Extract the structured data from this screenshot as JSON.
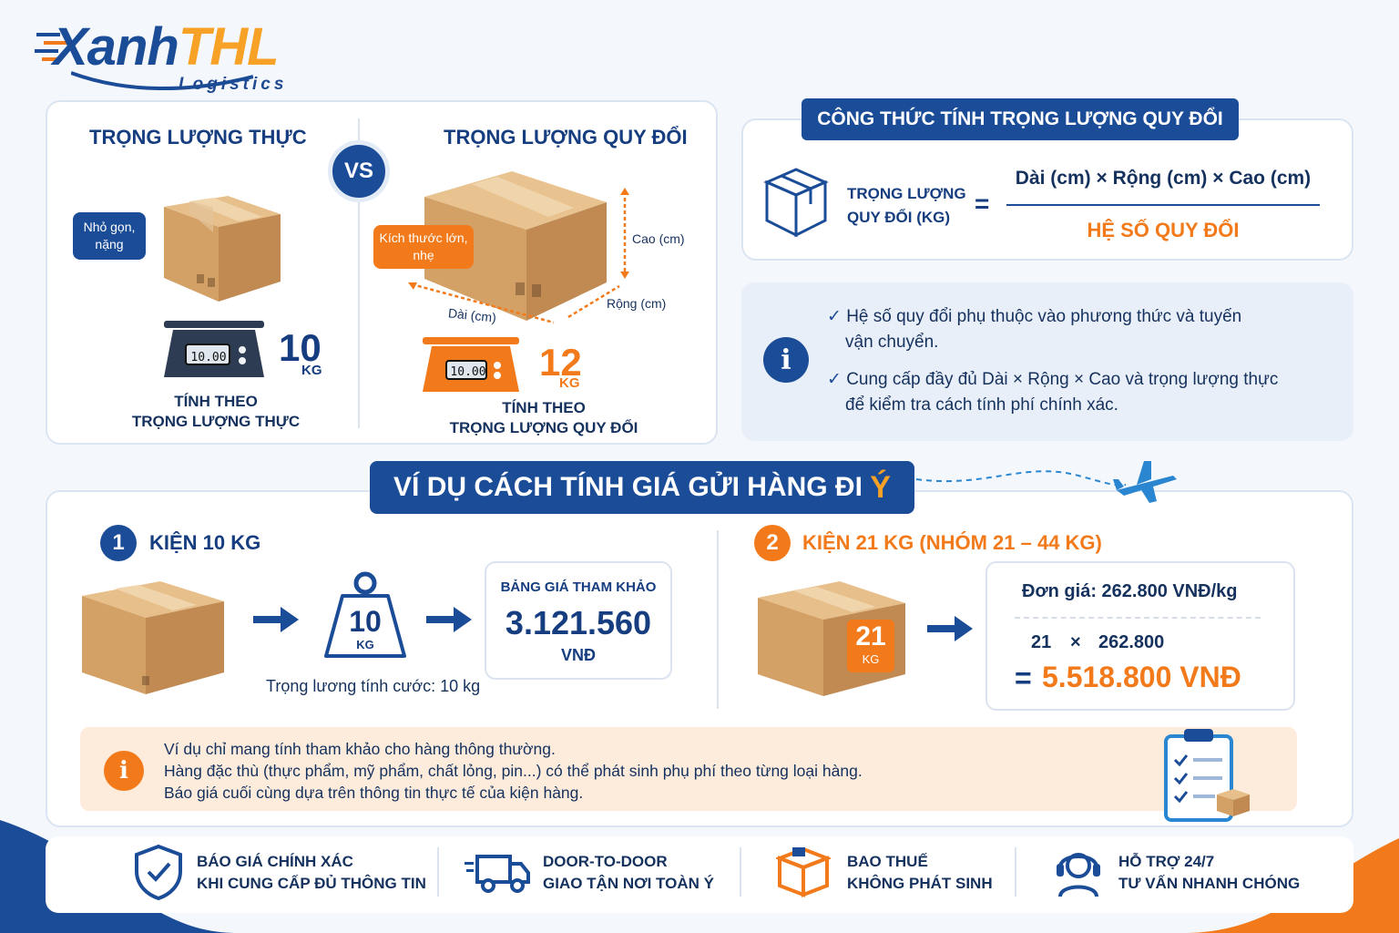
{
  "logo": {
    "brand_a": "Xanh",
    "brand_b": "THL",
    "sub": "Logistics"
  },
  "compare": {
    "left_title": "TRỌNG LƯỢNG THỰC",
    "right_title": "TRỌNG LƯỢNG QUY ĐỔI",
    "vs": "VS",
    "left_bubble": "Nhỏ gọn, nặng",
    "right_bubble": "Kích thước lớn, nhẹ",
    "dim_height": "Cao (cm)",
    "dim_width": "Rộng (cm)",
    "dim_length": "Dài (cm)",
    "scale_left_display": "10.00",
    "scale_right_display": "10.00",
    "left_weight_value": "10",
    "left_weight_unit": "KG",
    "right_weight_value": "12",
    "right_weight_unit": "KG",
    "left_caption_1": "TÍNH THEO",
    "left_caption_2": "TRỌNG LƯỢNG THỰC",
    "right_caption_1": "TÍNH THEO",
    "right_caption_2": "TRỌNG LƯỢNG QUY ĐỔI"
  },
  "formula": {
    "title": "CÔNG THỨC TÍNH TRỌNG LƯỢNG QUY ĐỔI",
    "label_1": "TRỌNG LƯỢNG",
    "label_2": "QUY ĐỔI (KG)",
    "equals": "=",
    "numerator": "Dài (cm) × Rộng (cm) × Cao (cm)",
    "denominator": "HỆ SỐ QUY ĐỔI"
  },
  "notes": {
    "item1_line1": "Hệ số quy đổi phụ thuộc vào phương thức và tuyến",
    "item1_line2": "vận chuyển.",
    "item2_line1": "Cung cấp đầy đủ Dài × Rộng × Cao và trọng lượng thực",
    "item2_line2": "để kiểm tra cách tính phí chính xác."
  },
  "example": {
    "title_main": "VÍ DỤ CÁCH TÍNH GIÁ GỬI HÀNG ĐI",
    "title_accent": "Ý",
    "case1": {
      "num": "1",
      "title": "KIỆN 10 KG",
      "weight_value": "10",
      "weight_unit": "KG",
      "caption": "Trọng lương tính cước: 10 kg",
      "price_label": "BẢNG GIÁ THAM KHẢO",
      "price_value": "3.121.560",
      "price_unit": "VNĐ"
    },
    "case2": {
      "num": "2",
      "title": "KIỆN 21 KG (NHÓM 21 – 44 KG)",
      "box_value": "21",
      "box_unit": "KG",
      "unit_price": "Đơn giá: 262.800 VNĐ/kg",
      "calc_a": "21",
      "calc_op": "×",
      "calc_b": "262.800",
      "result_eq": "=",
      "result": "5.518.800 VNĐ"
    },
    "disclaimer_1": "Ví dụ chỉ mang tính tham khảo cho hàng thông thường.",
    "disclaimer_2": "Hàng đặc thù (thực phẩm, mỹ phẩm, chất lỏng, pin...) có thể phát sinh phụ phí theo từng loại hàng.",
    "disclaimer_3": "Báo giá cuối cùng dựa trên thông tin thực tế của kiện hàng."
  },
  "features": [
    {
      "line1": "BÁO GIÁ CHÍNH XÁC",
      "line2": "KHI CUNG CẤP ĐỦ THÔNG TIN",
      "icon": "shield-check-icon"
    },
    {
      "line1": "DOOR-TO-DOOR",
      "line2": "GIAO TẬN NƠI TOÀN Ý",
      "icon": "truck-icon"
    },
    {
      "line1": "BAO THUẾ",
      "line2": "KHÔNG PHÁT SINH",
      "icon": "box-icon"
    },
    {
      "line1": "HỖ TRỢ 24/7",
      "line2": "TƯ VẤN NHANH CHÓNG",
      "icon": "headset-icon"
    }
  ],
  "colors": {
    "navy": "#1b4c97",
    "orange": "#f27a1a",
    "box": "#d2a26a"
  }
}
